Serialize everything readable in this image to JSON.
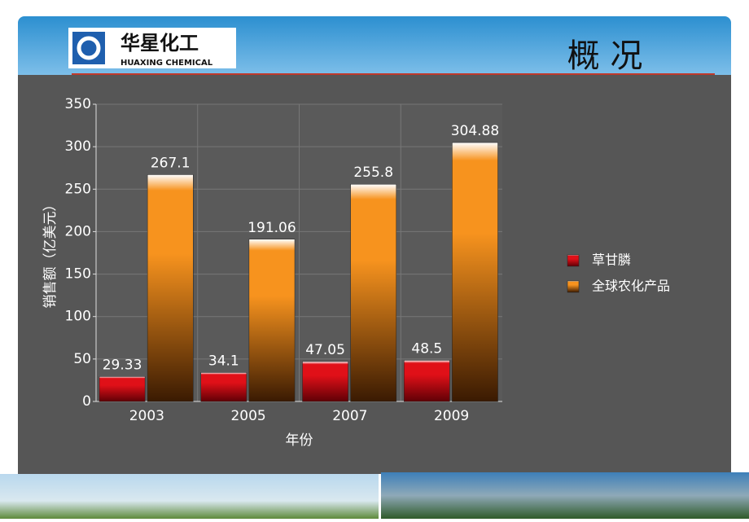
{
  "header": {
    "logo_cn": "华星化工",
    "logo_en": "HUAXING CHEMICAL",
    "title": "概 况"
  },
  "chart_data": {
    "type": "bar",
    "x_label": "年份",
    "y_label": "销售额（亿美元）",
    "categories": [
      "2003",
      "2005",
      "2007",
      "2009"
    ],
    "series": [
      {
        "name": "草甘膦",
        "color": "#e01018",
        "values": [
          29.33,
          34.1,
          47.05,
          48.5
        ]
      },
      {
        "name": "全球农化产品",
        "color": "#f7931e",
        "values": [
          267.1,
          191.06,
          255.8,
          304.88
        ]
      }
    ],
    "ylim": [
      0,
      350
    ],
    "yticks": [
      0,
      50,
      100,
      150,
      200,
      250,
      300,
      350
    ],
    "grid": true,
    "legend": "right"
  }
}
